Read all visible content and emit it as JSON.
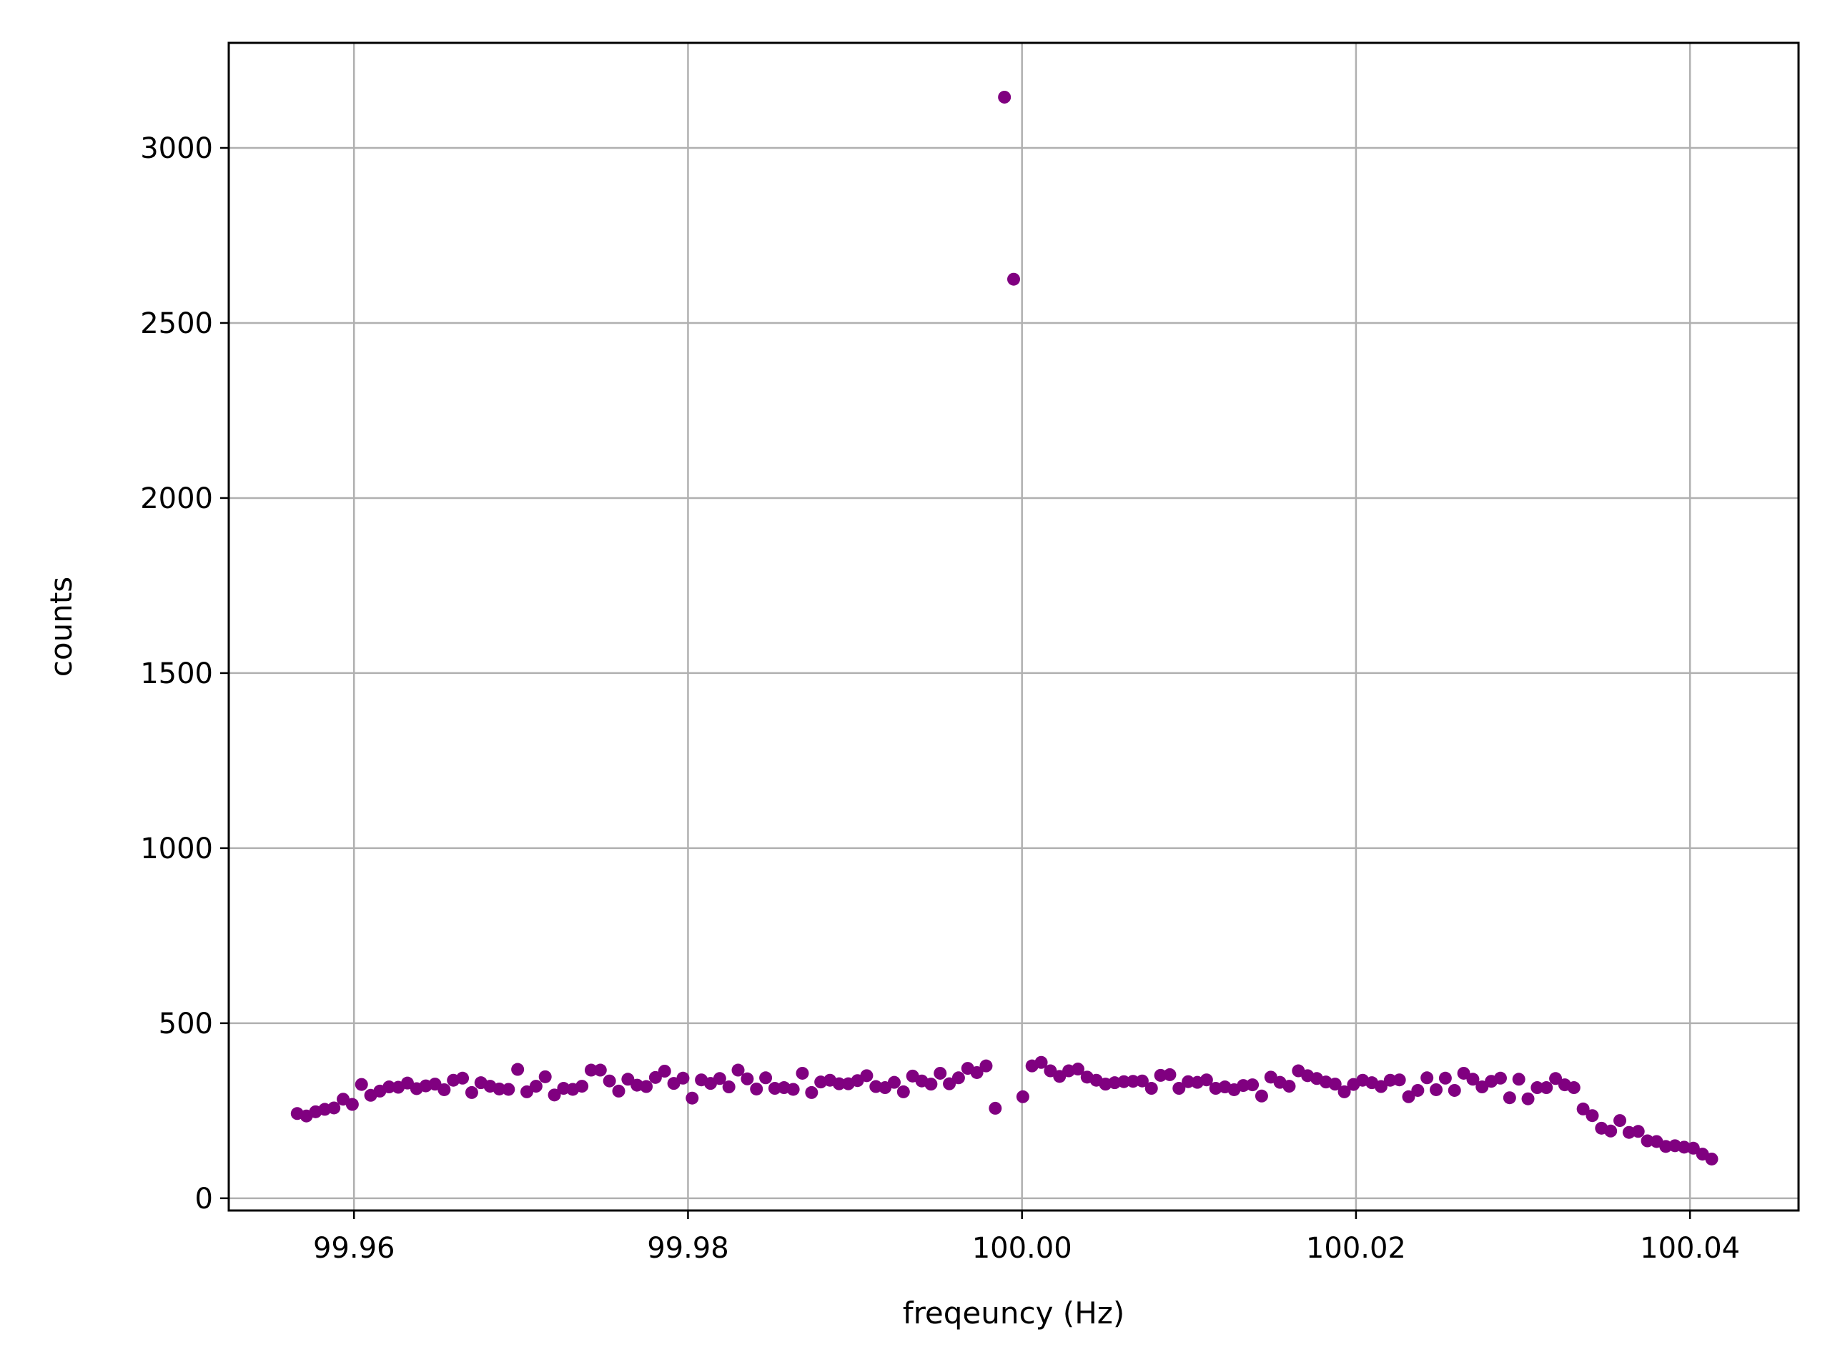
{
  "chart_data": {
    "type": "scatter",
    "title": "",
    "xlabel": "freqeuncy (Hz)",
    "ylabel": "counts",
    "xlim": [
      99.9525,
      100.0465
    ],
    "ylim": [
      -35,
      3300
    ],
    "xticks": [
      99.96,
      99.98,
      100.0,
      100.02,
      100.04
    ],
    "xtick_labels": [
      "99.96",
      "99.98",
      "100.00",
      "100.02",
      "100.04"
    ],
    "yticks": [
      0,
      500,
      1000,
      1500,
      2000,
      2500,
      3000
    ],
    "ytick_labels": [
      "0",
      "500",
      "1000",
      "1500",
      "2000",
      "2500",
      "3000"
    ],
    "grid": true,
    "legend": "none",
    "marker_color": "#800080",
    "grid_color": "#b0b0b0",
    "x_start": 99.9566,
    "x_step": 0.00055,
    "y": [
      242,
      235,
      247,
      254,
      258,
      283,
      268,
      325,
      294,
      306,
      318,
      317,
      329,
      313,
      321,
      326,
      310,
      337,
      343,
      302,
      330,
      320,
      312,
      311,
      368,
      304,
      320,
      347,
      295,
      314,
      311,
      320,
      366,
      366,
      335,
      306,
      340,
      323,
      319,
      345,
      363,
      328,
      343,
      286,
      338,
      328,
      342,
      318,
      366,
      341,
      312,
      344,
      314,
      316,
      311,
      357,
      302,
      332,
      337,
      327,
      327,
      336,
      350,
      319,
      316,
      331,
      304,
      349,
      335,
      326,
      357,
      327,
      344,
      371,
      359,
      378,
      257,
      3145,
      2625,
      290,
      378,
      388,
      364,
      348,
      364,
      369,
      346,
      337,
      326,
      330,
      333,
      334,
      335,
      314,
      351,
      353,
      314,
      333,
      331,
      338,
      314,
      318,
      310,
      322,
      324,
      292,
      346,
      331,
      320,
      364,
      350,
      342,
      332,
      326,
      304,
      325,
      337,
      330,
      319,
      337,
      338,
      290,
      308,
      344,
      310,
      343,
      308,
      357,
      340,
      318,
      334,
      343,
      287,
      340,
      284,
      316,
      316,
      342,
      324,
      316,
      255,
      236,
      200,
      192,
      222,
      188,
      191,
      164,
      162,
      148,
      150,
      146,
      143,
      126,
      112
    ]
  }
}
